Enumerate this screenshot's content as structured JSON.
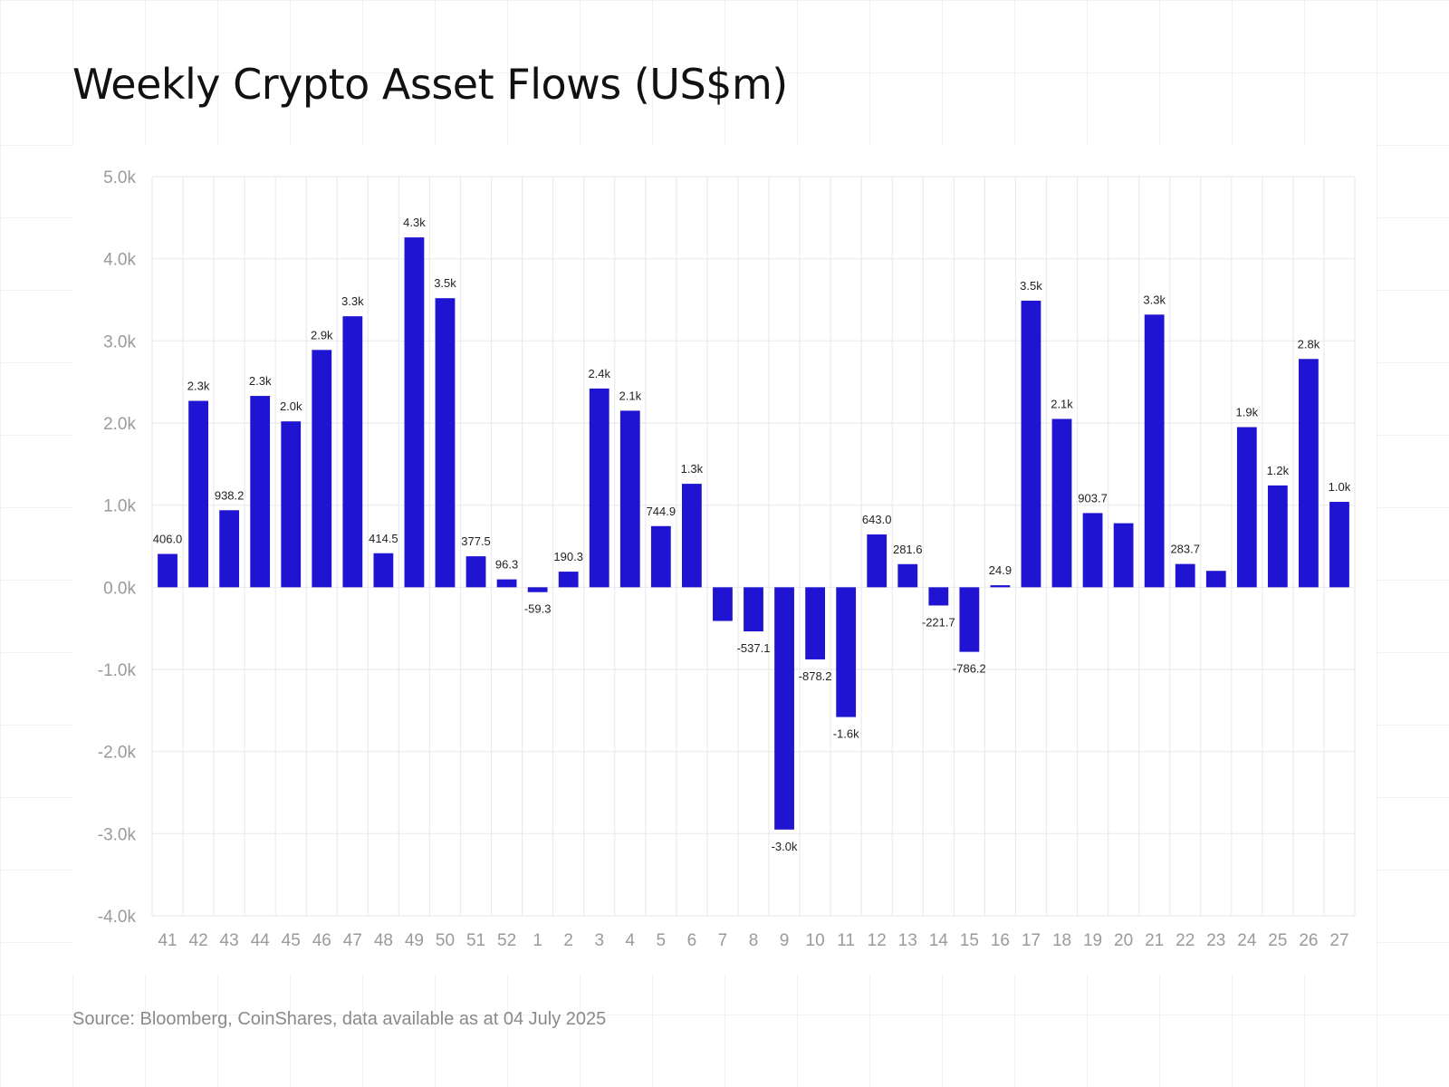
{
  "title": "Weekly Crypto Asset Flows (US$m)",
  "source": "Source: Bloomberg, CoinShares, data available as at 04 July 2025",
  "colors": {
    "bar": "#1f14d2",
    "grid": "#ebebeb",
    "tick": "#9a9a9a",
    "label": "#222222"
  },
  "chart_data": {
    "type": "bar",
    "categories": [
      "41",
      "42",
      "43",
      "44",
      "45",
      "46",
      "47",
      "48",
      "49",
      "50",
      "51",
      "52",
      "1",
      "2",
      "3",
      "4",
      "5",
      "6",
      "7",
      "8",
      "9",
      "10",
      "11",
      "12",
      "13",
      "14",
      "15",
      "16",
      "17",
      "18",
      "19",
      "20",
      "21",
      "22",
      "23",
      "24",
      "25",
      "26",
      "27"
    ],
    "values": [
      406.0,
      2270,
      938.2,
      2330,
      2020,
      2890,
      3300,
      414.5,
      4260,
      3520,
      377.5,
      96.3,
      -59.3,
      190.3,
      2420,
      2150,
      744.9,
      1260,
      -410,
      -537.1,
      -2950,
      -878.2,
      -1580,
      643.0,
      281.6,
      -221.7,
      -786.2,
      24.9,
      3490,
      2050,
      903.7,
      780,
      3320,
      283.7,
      200,
      1950,
      1240,
      2780,
      1040
    ],
    "labels": [
      "406.0",
      "2.3k",
      "938.2",
      "2.3k",
      "2.0k",
      "2.9k",
      "3.3k",
      "414.5",
      "4.3k",
      "3.5k",
      "377.5",
      "96.3",
      "-59.3",
      "190.3",
      "2.4k",
      "2.1k",
      "744.9",
      "1.3k",
      "",
      "-537.1",
      "-3.0k",
      "-878.2",
      "-1.6k",
      "643.0",
      "281.6",
      "-221.7",
      "-786.2",
      "24.9",
      "3.5k",
      "2.1k",
      "903.7",
      "",
      "3.3k",
      "283.7",
      "",
      "1.9k",
      "1.2k",
      "2.8k",
      "1.0k"
    ],
    "ylim": [
      -4000,
      5000
    ],
    "yticks": [
      -4000,
      -3000,
      -2000,
      -1000,
      0,
      1000,
      2000,
      3000,
      4000,
      5000
    ],
    "ytick_labels": [
      "-4.0k",
      "-3.0k",
      "-2.0k",
      "-1.0k",
      "0.0k",
      "1.0k",
      "2.0k",
      "3.0k",
      "4.0k",
      "5.0k"
    ],
    "grid": true,
    "xlabel": "",
    "ylabel": ""
  }
}
